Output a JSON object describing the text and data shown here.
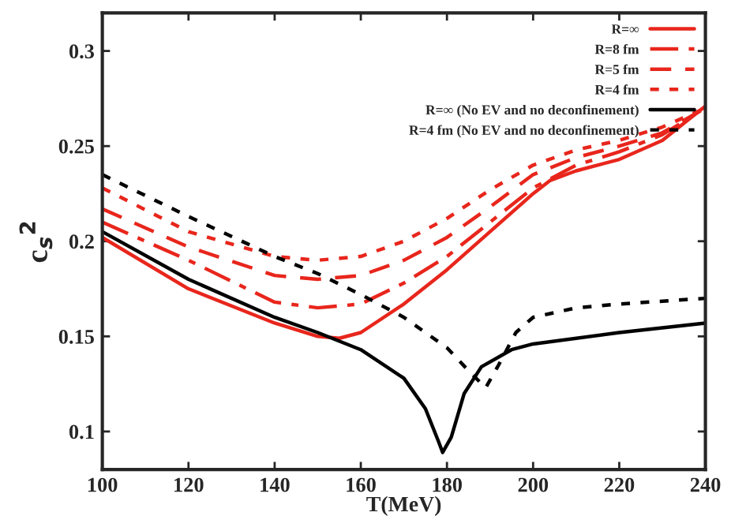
{
  "chart_data": {
    "type": "line",
    "xlabel": "T(MeV)",
    "ylabel": "c$_{s}$$^{2}$",
    "xlim": [
      100,
      240
    ],
    "ylim": [
      0.08,
      0.32
    ],
    "xticks": [
      100,
      120,
      140,
      160,
      180,
      200,
      220,
      240
    ],
    "yticks": [
      0.1,
      0.15,
      0.2,
      0.25,
      0.3
    ],
    "grid": false,
    "legend": "top right",
    "marker": "none",
    "series": [
      {
        "name": "R=∞",
        "color": "#e8261c",
        "line_style": "solid",
        "x": [
          100,
          120,
          140,
          150,
          155,
          160,
          170,
          180,
          190,
          200,
          204,
          210,
          220,
          230,
          240
        ],
        "values": [
          0.202,
          0.175,
          0.157,
          0.15,
          0.149,
          0.152,
          0.167,
          0.185,
          0.205,
          0.225,
          0.232,
          0.237,
          0.243,
          0.253,
          0.271
        ]
      },
      {
        "name": "R=8 fm",
        "color": "#e8261c",
        "line_style": "dashdot",
        "x": [
          100,
          120,
          140,
          150,
          160,
          170,
          180,
          190,
          200,
          210,
          220,
          230,
          240
        ],
        "values": [
          0.21,
          0.19,
          0.168,
          0.165,
          0.167,
          0.178,
          0.192,
          0.21,
          0.228,
          0.24,
          0.247,
          0.256,
          0.27
        ]
      },
      {
        "name": "R=5 fm",
        "color": "#e8261c",
        "line_style": "dashed",
        "x": [
          100,
          120,
          140,
          150,
          160,
          170,
          180,
          190,
          200,
          210,
          220,
          230,
          240
        ],
        "values": [
          0.217,
          0.197,
          0.182,
          0.18,
          0.182,
          0.19,
          0.202,
          0.218,
          0.235,
          0.244,
          0.25,
          0.257,
          0.27
        ]
      },
      {
        "name": "R=4 fm",
        "color": "#e8261c",
        "line_style": "dotted",
        "x": [
          100,
          120,
          140,
          150,
          160,
          170,
          180,
          190,
          200,
          210,
          220,
          230,
          240
        ],
        "values": [
          0.228,
          0.205,
          0.192,
          0.19,
          0.192,
          0.2,
          0.212,
          0.227,
          0.24,
          0.248,
          0.253,
          0.26,
          0.27
        ]
      },
      {
        "name": "R=∞ (No EV and no deconfinement)",
        "color": "#000000",
        "line_style": "solid",
        "x": [
          100,
          120,
          140,
          150,
          160,
          170,
          175,
          178,
          179,
          181,
          184,
          188,
          195,
          200,
          220,
          240
        ],
        "values": [
          0.205,
          0.18,
          0.16,
          0.152,
          0.143,
          0.128,
          0.112,
          0.095,
          0.089,
          0.097,
          0.12,
          0.134,
          0.143,
          0.146,
          0.152,
          0.157
        ]
      },
      {
        "name": "R=4 fm (No EV and no deconfinement)",
        "color": "#000000",
        "line_style": "dotted",
        "x": [
          100,
          120,
          140,
          150,
          160,
          170,
          180,
          185,
          189,
          192,
          196,
          200,
          210,
          220,
          240
        ],
        "values": [
          0.235,
          0.213,
          0.192,
          0.183,
          0.172,
          0.16,
          0.144,
          0.132,
          0.123,
          0.135,
          0.152,
          0.16,
          0.165,
          0.167,
          0.17
        ]
      }
    ]
  }
}
